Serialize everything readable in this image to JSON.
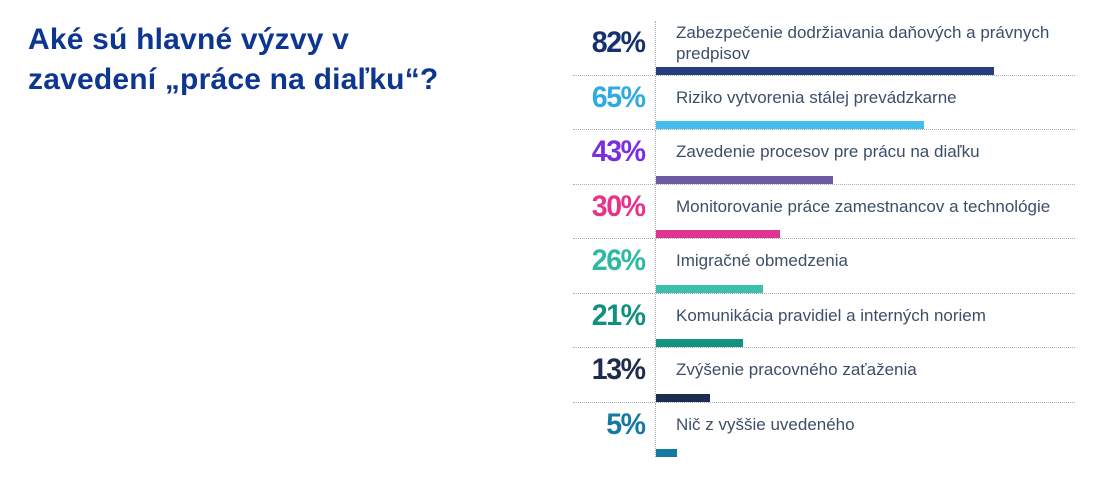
{
  "title": "Aké sú hlavné výzvy v zavedení „práce na diaľku“?",
  "title_color": "#0d3691",
  "separator_color": "#a4aeba",
  "label_color": "#3d4e68",
  "chart_data": {
    "type": "bar",
    "orientation": "horizontal",
    "title": "Aké sú hlavné výzvy v zavedení „práce na diaľku“?",
    "unit": "%",
    "xlim": [
      0,
      100
    ],
    "grid": "dotted row separators and dotted vertical baseline",
    "legend": "none",
    "categories": [
      "Zabezpečenie dodržiavania daňových a právnych predpisov",
      "Riziko vytvorenia stálej prevádzkarne",
      "Zavedenie procesov pre prácu na diaľku",
      "Monitorovanie práce zamestnancov a technológie",
      "Imigračné obmedzenia",
      "Komunikácia pravidiel a interných noriem",
      "Zvýšenie pracovného zaťaženia",
      "Nič z vyššie uvedeného"
    ],
    "values": [
      82,
      65,
      43,
      30,
      26,
      21,
      13,
      5
    ],
    "value_labels": [
      "82%",
      "65%",
      "43%",
      "30%",
      "26%",
      "21%",
      "13%",
      "5%"
    ],
    "number_colors": [
      "#15316e",
      "#2fabe1",
      "#7b2ee1",
      "#e7338c",
      "#2db9a4",
      "#10917e",
      "#1d2b4d",
      "#1579a3"
    ],
    "bar_colors": [
      "#263e7c",
      "#45bdec",
      "#6c5aa5",
      "#e13390",
      "#3cbfab",
      "#12927f",
      "#1e2c4f",
      "#137aa2"
    ]
  }
}
